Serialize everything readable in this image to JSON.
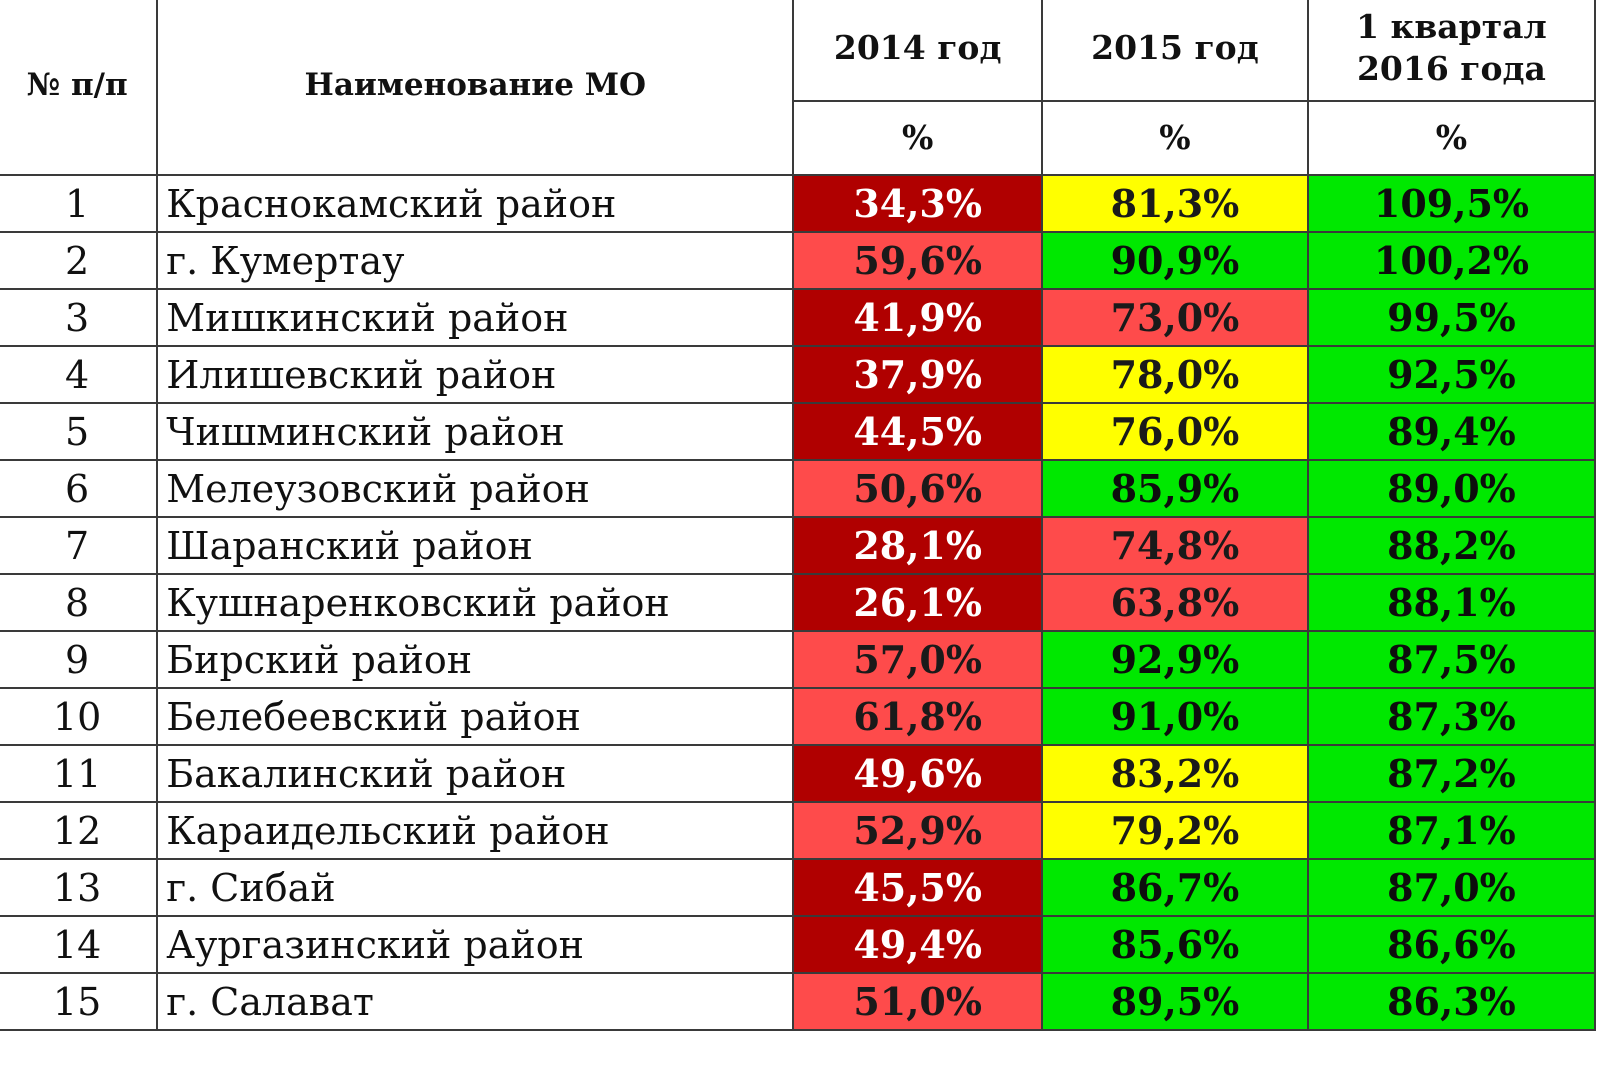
{
  "header": {
    "num_label": "№ п/п",
    "name_label": "Наименование МО",
    "col_2014": "2014 год",
    "col_2015": "2015 год",
    "col_q1_line1": "1 квартал",
    "col_q1_line2": "2016 года",
    "unit": "%"
  },
  "colors": {
    "dark_red": "#b00000",
    "light_red": "#fe4b4b",
    "yellow": "#ffff00",
    "green": "#00e800"
  },
  "rows": [
    {
      "num": "1",
      "name": "Краснокамский район",
      "y2014": "34,3%",
      "y2014_color": "dark-red",
      "y2015": "81,3%",
      "y2015_color": "yellow",
      "q1": "109,5%",
      "q1_color": "green"
    },
    {
      "num": "2",
      "name": "г. Кумертау",
      "y2014": "59,6%",
      "y2014_color": "light-red",
      "y2015": "90,9%",
      "y2015_color": "green",
      "q1": "100,2%",
      "q1_color": "green"
    },
    {
      "num": "3",
      "name": "Мишкинский район",
      "y2014": "41,9%",
      "y2014_color": "dark-red",
      "y2015": "73,0%",
      "y2015_color": "light-red",
      "q1": "99,5%",
      "q1_color": "green"
    },
    {
      "num": "4",
      "name": "Илишевский район",
      "y2014": "37,9%",
      "y2014_color": "dark-red",
      "y2015": "78,0%",
      "y2015_color": "yellow",
      "q1": "92,5%",
      "q1_color": "green"
    },
    {
      "num": "5",
      "name": "Чишминский район",
      "y2014": "44,5%",
      "y2014_color": "dark-red",
      "y2015": "76,0%",
      "y2015_color": "yellow",
      "q1": "89,4%",
      "q1_color": "green"
    },
    {
      "num": "6",
      "name": "Мелеузовский район",
      "y2014": "50,6%",
      "y2014_color": "light-red",
      "y2015": "85,9%",
      "y2015_color": "green",
      "q1": "89,0%",
      "q1_color": "green"
    },
    {
      "num": "7",
      "name": "Шаранский район",
      "y2014": "28,1%",
      "y2014_color": "dark-red",
      "y2015": "74,8%",
      "y2015_color": "light-red",
      "q1": "88,2%",
      "q1_color": "green"
    },
    {
      "num": "8",
      "name": "Кушнаренковский район",
      "y2014": "26,1%",
      "y2014_color": "dark-red",
      "y2015": "63,8%",
      "y2015_color": "light-red",
      "q1": "88,1%",
      "q1_color": "green"
    },
    {
      "num": "9",
      "name": "Бирский район",
      "y2014": "57,0%",
      "y2014_color": "light-red",
      "y2015": "92,9%",
      "y2015_color": "green",
      "q1": "87,5%",
      "q1_color": "green"
    },
    {
      "num": "10",
      "name": "Белебеевский район",
      "y2014": "61,8%",
      "y2014_color": "light-red",
      "y2015": "91,0%",
      "y2015_color": "green",
      "q1": "87,3%",
      "q1_color": "green"
    },
    {
      "num": "11",
      "name": "Бакалинский район",
      "y2014": "49,6%",
      "y2014_color": "dark-red",
      "y2015": "83,2%",
      "y2015_color": "yellow",
      "q1": "87,2%",
      "q1_color": "green"
    },
    {
      "num": "12",
      "name": "Караидельский район",
      "y2014": "52,9%",
      "y2014_color": "light-red",
      "y2015": "79,2%",
      "y2015_color": "yellow",
      "q1": "87,1%",
      "q1_color": "green"
    },
    {
      "num": "13",
      "name": "г. Сибай",
      "y2014": "45,5%",
      "y2014_color": "dark-red",
      "y2015": "86,7%",
      "y2015_color": "green",
      "q1": "87,0%",
      "q1_color": "green"
    },
    {
      "num": "14",
      "name": "Аургазинский район",
      "y2014": "49,4%",
      "y2014_color": "dark-red",
      "y2015": "85,6%",
      "y2015_color": "green",
      "q1": "86,6%",
      "q1_color": "green"
    },
    {
      "num": "15",
      "name": "г. Салават",
      "y2014": "51,0%",
      "y2014_color": "light-red",
      "y2015": "89,5%",
      "y2015_color": "green",
      "q1": "86,3%",
      "q1_color": "green"
    }
  ]
}
